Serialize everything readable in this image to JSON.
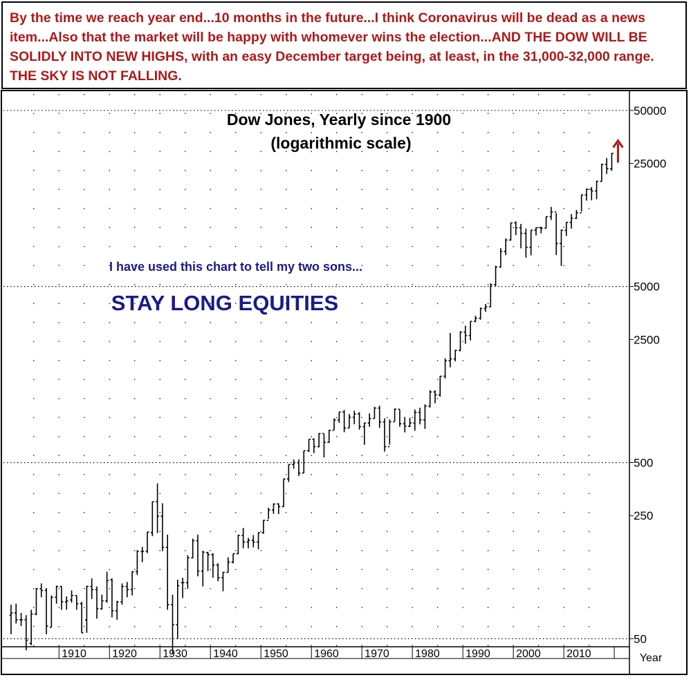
{
  "header": {
    "text": "By the time we reach year end...10 months in the future...I think Coronavirus will be dead as a news item...Also that the market will be happy with whomever wins the election...AND THE DOW WILL BE SOLIDLY INTO NEW HIGHS, with an easy December target being, at least, in the 31,000-32,000 range. THE SKY IS NOT FALLING."
  },
  "colors": {
    "header_text": "#b01818",
    "annotation_text": "#1a1a8c",
    "arrow": "#b01818",
    "bars": "#000000"
  },
  "chart_data": {
    "type": "ohlc",
    "title": "Dow Jones, Yearly since 1900",
    "subtitle": "(logarithmic scale)",
    "annotation": "I have used this chart to tell my two sons...",
    "slogan": "STAY LONG EQUITIES",
    "xlabel": "Year",
    "ylabel": "",
    "yscale": "log",
    "ylim": [
      45,
      62000
    ],
    "xlim": [
      1899,
      2023
    ],
    "grid": true,
    "y_ticks": [
      50000,
      25000,
      5000,
      2500,
      500,
      250,
      50
    ],
    "y_ticks_labeled": [
      "50000",
      "25000",
      "5000",
      "2500",
      "500",
      "250",
      "50"
    ],
    "y_major_gridlines": [
      50000,
      5000,
      500,
      50
    ],
    "x_ticks": [
      1910,
      1920,
      1930,
      1940,
      1950,
      1960,
      1970,
      1980,
      1990,
      2000,
      2010
    ],
    "x_tick_labels": [
      "1910",
      "1920",
      "1930",
      "1940",
      "1950",
      "1960",
      "1970",
      "1980",
      "1990",
      "2000",
      "2010"
    ],
    "continuation_arrow": "up",
    "series": [
      {
        "years": [
          1900,
          1901,
          1902,
          1903,
          1904,
          1905,
          1906,
          1907,
          1908,
          1909,
          1910,
          1911,
          1912,
          1913,
          1914,
          1915,
          1916,
          1917,
          1918,
          1919,
          1920,
          1921,
          1922,
          1923,
          1924,
          1925,
          1926,
          1927,
          1928,
          1929,
          1930,
          1931,
          1932,
          1933,
          1934,
          1935,
          1936,
          1937,
          1938,
          1939,
          1940,
          1941,
          1942,
          1943,
          1944,
          1945,
          1946,
          1947,
          1948,
          1949,
          1950,
          1951,
          1952,
          1953,
          1954,
          1955,
          1956,
          1957,
          1958,
          1959,
          1960,
          1961,
          1962,
          1963,
          1964,
          1965,
          1966,
          1967,
          1968,
          1969,
          1970,
          1971,
          1972,
          1973,
          1974,
          1975,
          1976,
          1977,
          1978,
          1979,
          1980,
          1981,
          1982,
          1983,
          1984,
          1985,
          1986,
          1987,
          1988,
          1989,
          1990,
          1991,
          1992,
          1993,
          1994,
          1995,
          1996,
          1997,
          1998,
          1999,
          2000,
          2001,
          2002,
          2003,
          2004,
          2005,
          2006,
          2007,
          2008,
          2009,
          2010,
          2011,
          2012,
          2013,
          2014,
          2015,
          2016,
          2017,
          2018,
          2019
        ],
        "open": [
          68,
          70,
          64,
          64,
          47,
          69,
          96,
          94,
          58,
          86,
          99,
          81,
          83,
          88,
          79,
          64,
          99,
          95,
          74,
          82,
          108,
          72,
          81,
          99,
          95,
          120,
          156,
          157,
          200,
          300,
          248,
          165,
          78,
          60,
          104,
          104,
          144,
          180,
          121,
          154,
          150,
          131,
          111,
          119,
          136,
          152,
          193,
          177,
          181,
          177,
          200,
          235,
          269,
          291,
          281,
          404,
          488,
          499,
          436,
          584,
          679,
          616,
          731,
          652,
          763,
          874,
          969,
          786,
          905,
          944,
          800,
          839,
          890,
          1020,
          851,
          616,
          852,
          1005,
          831,
          805,
          838,
          964,
          875,
          1047,
          1259,
          1212,
          1547,
          1896,
          1939,
          2168,
          2753,
          2634,
          3169,
          3301,
          3754,
          3834,
          5117,
          6448,
          7908,
          9181,
          11497,
          10787,
          10021,
          8342,
          10453,
          10783,
          10718,
          12463,
          13264,
          8776,
          10428,
          11578,
          12217,
          13104,
          16576,
          17823,
          17425,
          19763,
          24719,
          23327
        ],
        "high": [
          78,
          79,
          70,
          68,
          73,
          97,
          103,
          97,
          88,
          100,
          99,
          87,
          94,
          88,
          81,
          100,
          110,
          99,
          89,
          120,
          110,
          82,
          103,
          105,
          121,
          159,
          166,
          202,
          300,
          381,
          294,
          195,
          89,
          108,
          111,
          149,
          185,
          195,
          158,
          156,
          153,
          134,
          120,
          145,
          152,
          195,
          213,
          187,
          194,
          201,
          236,
          277,
          293,
          294,
          404,
          488,
          521,
          521,
          584,
          680,
          686,
          735,
          726,
          767,
          892,
          969,
          995,
          944,
          986,
          969,
          843,
          951,
          1036,
          1052,
          892,
          881,
          1015,
          1000,
          908,
          898,
          1001,
          1025,
          1071,
          1290,
          1287,
          1553,
          1955,
          2722,
          2184,
          2791,
          3000,
          3168,
          3413,
          3794,
          3978,
          5216,
          6560,
          8259,
          9374,
          11497,
          11722,
          11338,
          10673,
          10453,
          10854,
          10940,
          12510,
          14164,
          13058,
          10548,
          11585,
          12876,
          13610,
          16576,
          18054,
          18351,
          19975,
          24876,
          26828,
          28645
        ],
        "low": [
          53,
          61,
          59,
          43,
          46,
          68,
          86,
          53,
          58,
          79,
          73,
          73,
          80,
          73,
          54,
          54,
          84,
          65,
          73,
          80,
          66,
          64,
          78,
          86,
          88,
          115,
          136,
          153,
          191,
          199,
          157,
          73,
          41,
          50,
          85,
          96,
          143,
          113,
          99,
          121,
          111,
          106,
          93,
          119,
          134,
          151,
          163,
          163,
          165,
          161,
          197,
          239,
          256,
          255,
          280,
          388,
          462,
          420,
          436,
          574,
          566,
          610,
          535,
          647,
          766,
          841,
          744,
          786,
          825,
          770,
          631,
          798,
          889,
          788,
          577,
          632,
          858,
          800,
          742,
          796,
          759,
          824,
          777,
          1027,
          1086,
          1184,
          1502,
          1738,
          1879,
          2144,
          2365,
          2470,
          3137,
          3242,
          3593,
          3832,
          5032,
          6391,
          7539,
          9120,
          9796,
          8236,
          7286,
          7524,
          9750,
          10012,
          10668,
          11939,
          7552,
          6547,
          9686,
          10655,
          12101,
          13328,
          15373,
          15451,
          15660,
          19732,
          21792,
          22686
        ],
        "close": [
          70,
          64,
          64,
          49,
          69,
          96,
          94,
          59,
          86,
          99,
          81,
          82,
          88,
          79,
          54,
          99,
          95,
          74,
          82,
          107,
          72,
          81,
          99,
          95,
          120,
          157,
          157,
          202,
          300,
          248,
          165,
          78,
          60,
          100,
          104,
          144,
          180,
          121,
          155,
          150,
          131,
          111,
          119,
          136,
          152,
          193,
          177,
          181,
          177,
          200,
          235,
          269,
          291,
          281,
          404,
          488,
          499,
          436,
          584,
          679,
          616,
          731,
          652,
          763,
          874,
          969,
          786,
          905,
          944,
          800,
          839,
          890,
          1020,
          851,
          616,
          852,
          1005,
          831,
          805,
          839,
          964,
          875,
          1047,
          1259,
          1212,
          1547,
          1896,
          1939,
          2169,
          2753,
          2634,
          3169,
          3301,
          3754,
          3834,
          5117,
          6448,
          7908,
          9181,
          11497,
          10787,
          10022,
          8342,
          10454,
          10783,
          10718,
          12463,
          13265,
          8776,
          10428,
          11578,
          12218,
          13104,
          16577,
          17823,
          17425,
          19763,
          24719,
          23327,
          28538
        ]
      }
    ]
  }
}
